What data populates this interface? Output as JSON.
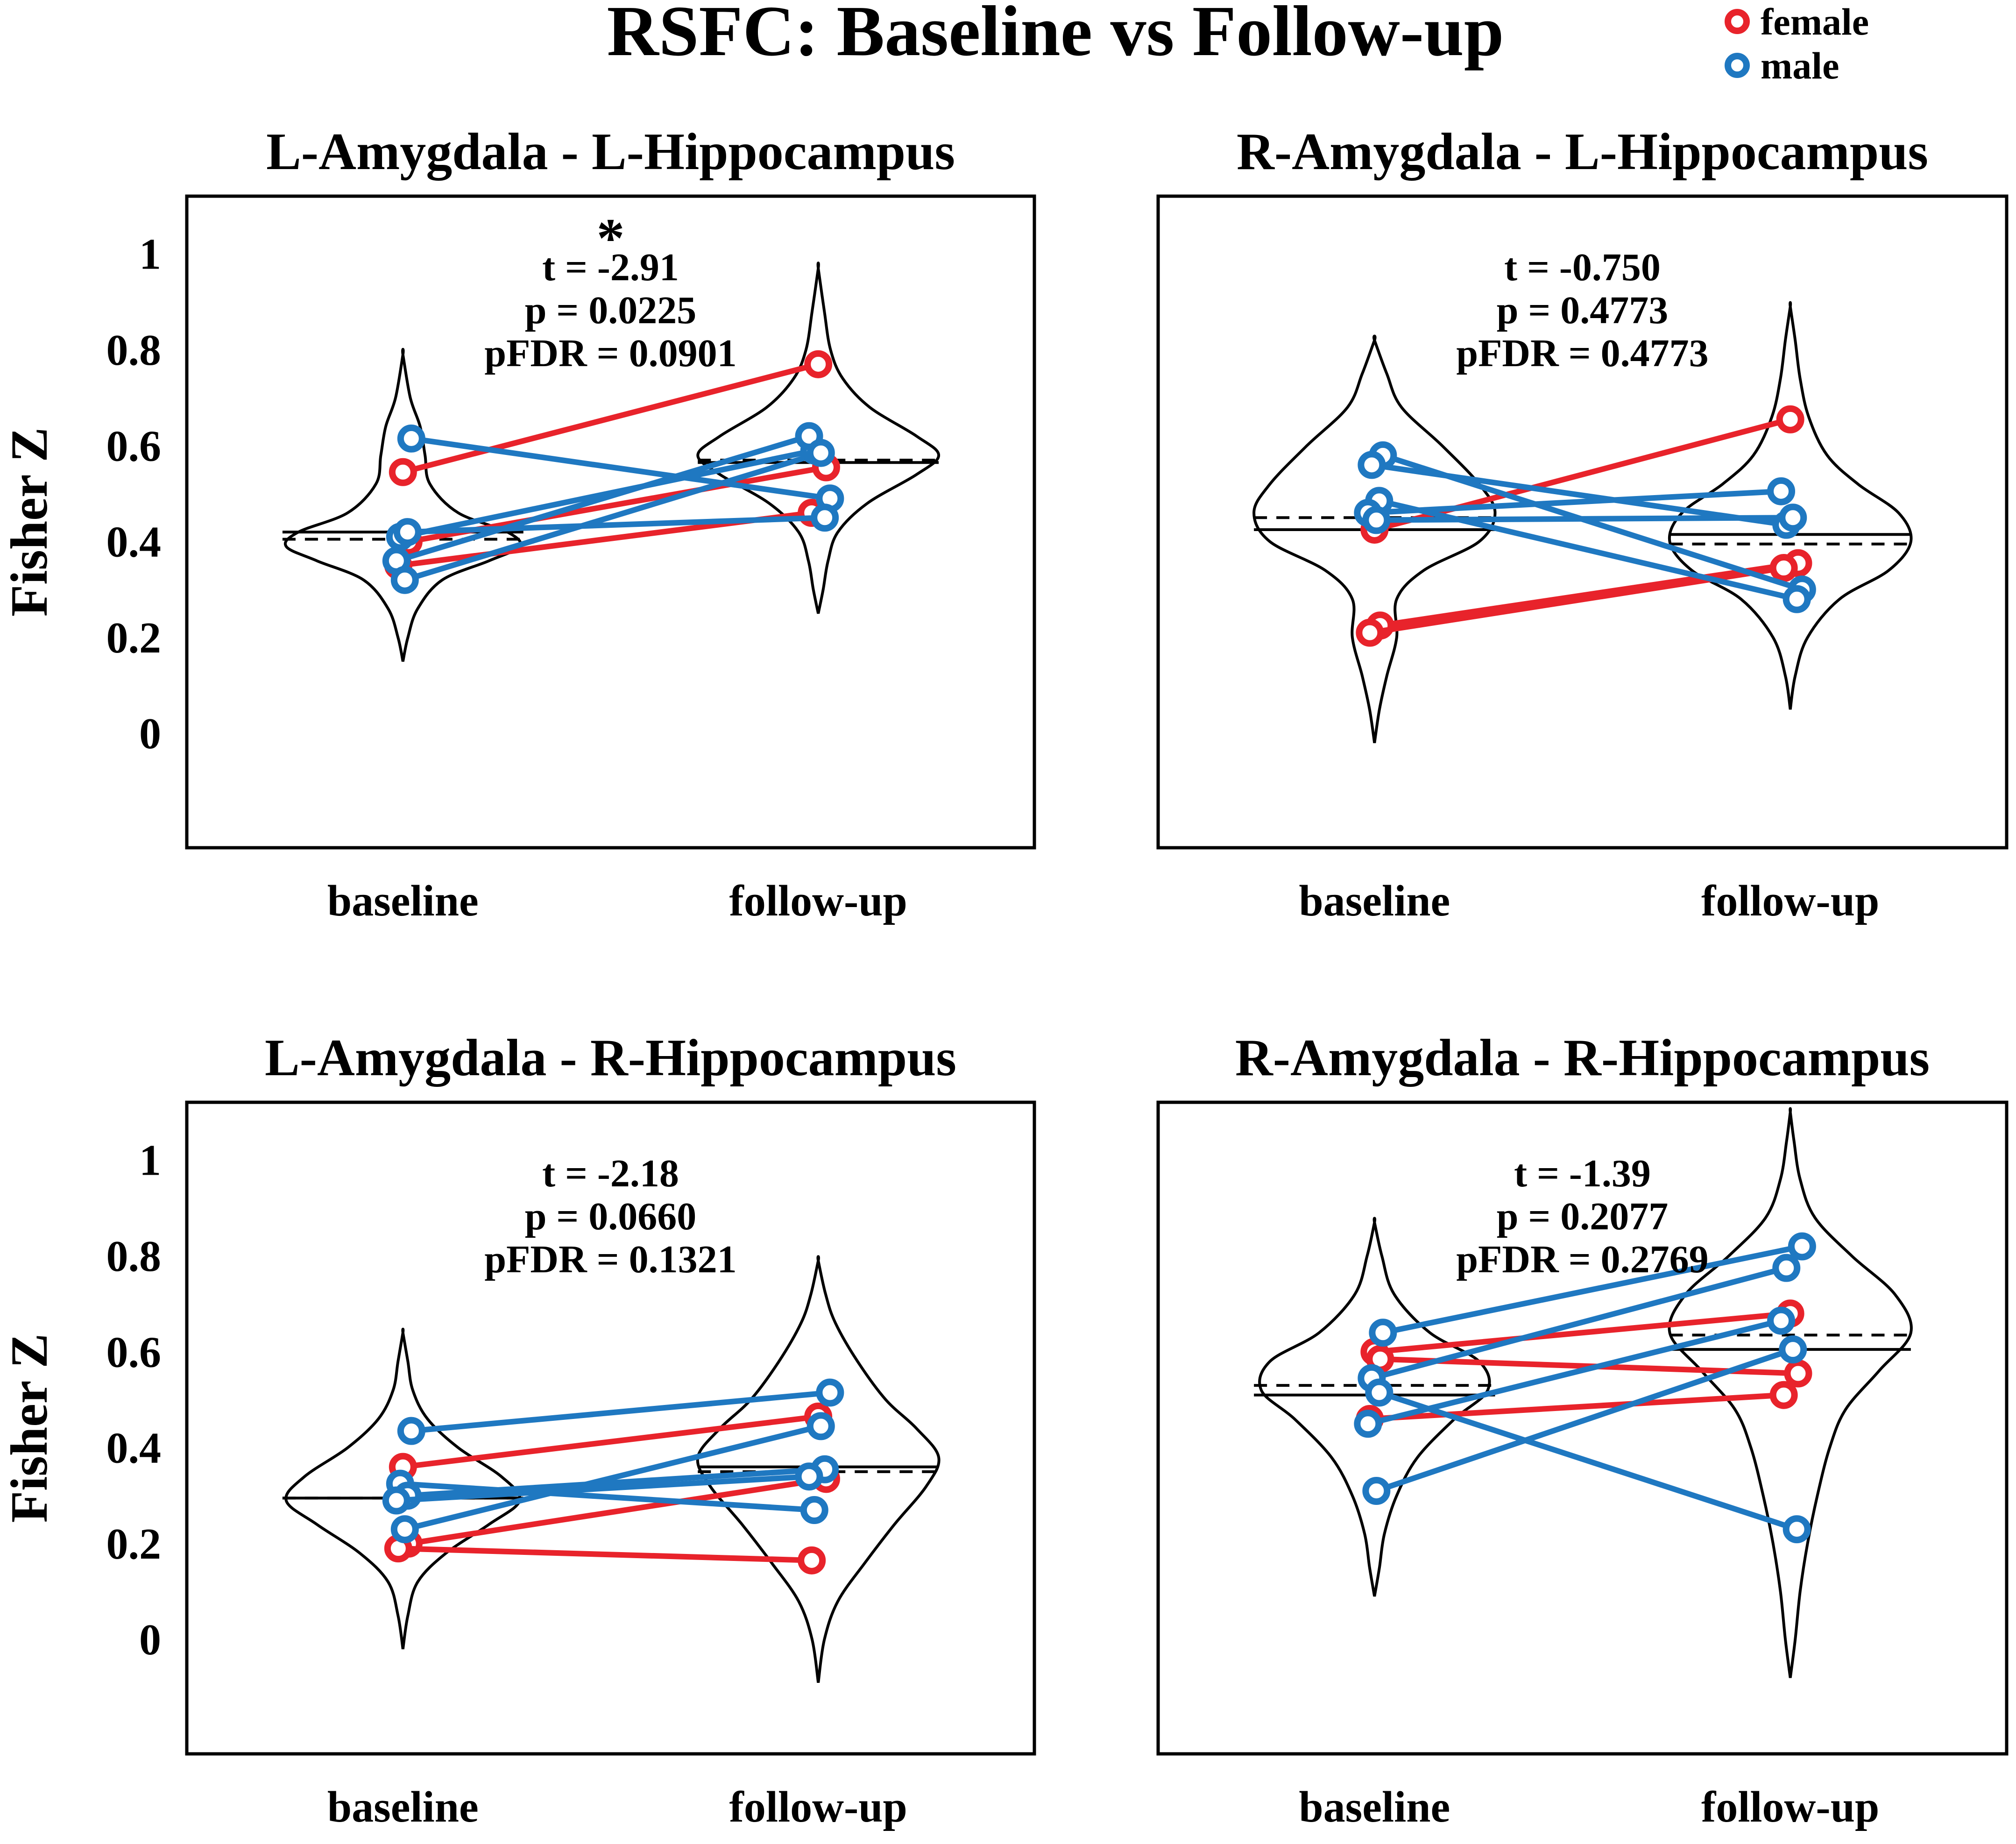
{
  "figure": {
    "title": "RSFC: Baseline vs Follow-up"
  },
  "legend": [
    {
      "label": "female",
      "color": "#e8232b"
    },
    {
      "label": "male",
      "color": "#1f78c1"
    }
  ],
  "colors": {
    "female": "#e8232b",
    "male": "#1f78c1",
    "axes": "#000000",
    "violin": "#000000"
  },
  "chart_data": [
    {
      "type": "violin-paired",
      "title": "L-Amygdala - L-Hippocampus",
      "xlabel": "",
      "ylabel": "Fisher Z",
      "categories": [
        "baseline",
        "follow-up"
      ],
      "ylim": [
        -0.1,
        1.1
      ],
      "yticks": [
        "0",
        "0.2",
        "0.4",
        "0.6",
        "0.8",
        "1"
      ],
      "stats": {
        "t": "t = -2.91",
        "p": "p = 0.0225",
        "pfdr": "pFDR = 0.0901",
        "significance": "*"
      },
      "median": [
        0.42,
        0.565
      ],
      "mean": [
        0.405,
        0.57
      ],
      "subjects": [
        {
          "sex": "female",
          "baseline": 0.545,
          "followup": 0.77
        },
        {
          "sex": "female",
          "baseline": 0.4,
          "followup": 0.555
        },
        {
          "sex": "female",
          "baseline": 0.35,
          "followup": 0.46
        },
        {
          "sex": "male",
          "baseline": 0.615,
          "followup": 0.49
        },
        {
          "sex": "male",
          "baseline": 0.41,
          "followup": 0.59
        },
        {
          "sex": "male",
          "baseline": 0.42,
          "followup": 0.45
        },
        {
          "sex": "male",
          "baseline": 0.36,
          "followup": 0.62
        },
        {
          "sex": "male",
          "baseline": 0.32,
          "followup": 0.585
        }
      ]
    },
    {
      "type": "violin-paired",
      "title": "R-Amygdala - L-Hippocampus",
      "xlabel": "",
      "ylabel": "",
      "categories": [
        "baseline",
        "follow-up"
      ],
      "ylim": [
        -0.1,
        1.1
      ],
      "yticks": [],
      "stats": {
        "t": "t = -0.750",
        "p": "p = 0.4773",
        "pfdr": "pFDR = 0.4773",
        "significance": ""
      },
      "median": [
        0.425,
        0.415
      ],
      "mean": [
        0.45,
        0.395
      ],
      "subjects": [
        {
          "sex": "female",
          "baseline": 0.425,
          "followup": 0.655
        },
        {
          "sex": "female",
          "baseline": 0.225,
          "followup": 0.355
        },
        {
          "sex": "female",
          "baseline": 0.21,
          "followup": 0.345
        },
        {
          "sex": "male",
          "baseline": 0.58,
          "followup": 0.3
        },
        {
          "sex": "male",
          "baseline": 0.56,
          "followup": 0.435
        },
        {
          "sex": "male",
          "baseline": 0.485,
          "followup": 0.28
        },
        {
          "sex": "male",
          "baseline": 0.46,
          "followup": 0.505
        },
        {
          "sex": "male",
          "baseline": 0.445,
          "followup": 0.45
        }
      ]
    },
    {
      "type": "violin-paired",
      "title": "L-Amygdala - R-Hippocampus",
      "xlabel": "",
      "ylabel": "Fisher Z",
      "categories": [
        "baseline",
        "follow-up"
      ],
      "ylim": [
        -0.1,
        1.1
      ],
      "yticks": [
        "0",
        "0.2",
        "0.4",
        "0.6",
        "0.8",
        "1"
      ],
      "stats": {
        "t": "t = -2.18",
        "p": "p = 0.0660",
        "pfdr": "pFDR = 0.1321",
        "significance": ""
      },
      "median": [
        0.295,
        0.36
      ],
      "mean": [
        0.295,
        0.35
      ],
      "subjects": [
        {
          "sex": "female",
          "baseline": 0.36,
          "followup": 0.465
        },
        {
          "sex": "female",
          "baseline": 0.2,
          "followup": 0.335
        },
        {
          "sex": "female",
          "baseline": 0.19,
          "followup": 0.165
        },
        {
          "sex": "male",
          "baseline": 0.435,
          "followup": 0.515
        },
        {
          "sex": "male",
          "baseline": 0.325,
          "followup": 0.27
        },
        {
          "sex": "male",
          "baseline": 0.3,
          "followup": 0.355
        },
        {
          "sex": "male",
          "baseline": 0.29,
          "followup": 0.34
        },
        {
          "sex": "male",
          "baseline": 0.23,
          "followup": 0.445
        }
      ]
    },
    {
      "type": "violin-paired",
      "title": "R-Amygdala - R-Hippocampus",
      "xlabel": "",
      "ylabel": "",
      "categories": [
        "baseline",
        "follow-up"
      ],
      "ylim": [
        -0.1,
        1.1
      ],
      "yticks": [],
      "stats": {
        "t": "t = -1.39",
        "p": "p = 0.2077",
        "pfdr": "pFDR = 0.2769",
        "significance": ""
      },
      "median": [
        0.51,
        0.605
      ],
      "mean": [
        0.53,
        0.635
      ],
      "subjects": [
        {
          "sex": "female",
          "baseline": 0.6,
          "followup": 0.68
        },
        {
          "sex": "female",
          "baseline": 0.585,
          "followup": 0.555
        },
        {
          "sex": "female",
          "baseline": 0.46,
          "followup": 0.51
        },
        {
          "sex": "male",
          "baseline": 0.64,
          "followup": 0.82
        },
        {
          "sex": "male",
          "baseline": 0.545,
          "followup": 0.775
        },
        {
          "sex": "male",
          "baseline": 0.515,
          "followup": 0.23
        },
        {
          "sex": "male",
          "baseline": 0.45,
          "followup": 0.665
        },
        {
          "sex": "male",
          "baseline": 0.31,
          "followup": 0.605
        }
      ]
    }
  ]
}
